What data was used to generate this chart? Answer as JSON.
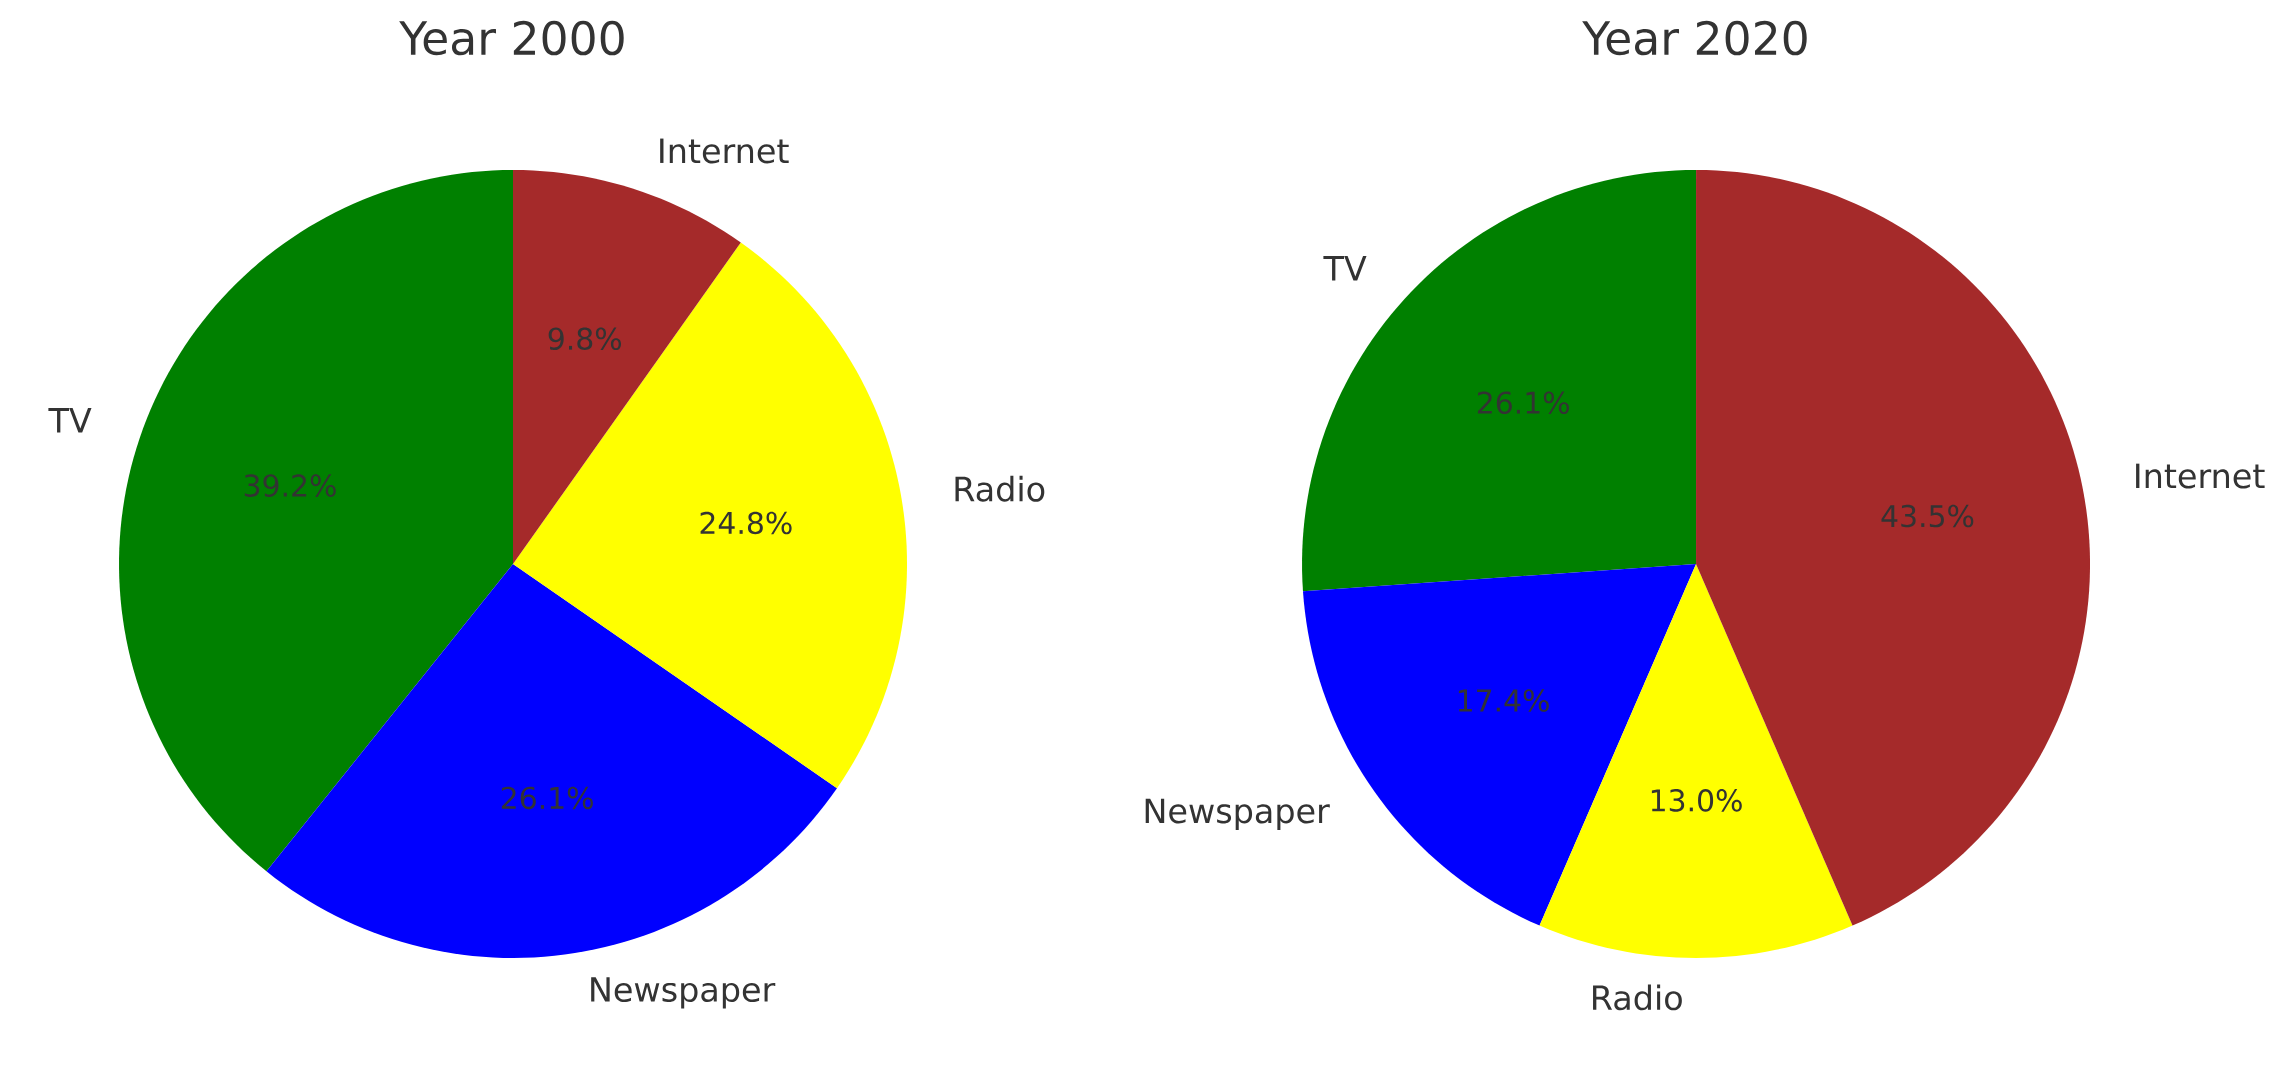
{
  "chart_data": [
    {
      "type": "pie",
      "title": "Year 2000",
      "categories": [
        "TV",
        "Newspaper",
        "Radio",
        "Internet"
      ],
      "values": [
        39.2,
        26.1,
        24.8,
        9.8
      ],
      "colors": [
        "#008000",
        "#0000ff",
        "#ffff00",
        "#a52a2a"
      ],
      "value_labels": [
        "39.2%",
        "26.1%",
        "24.8%",
        "9.8%"
      ]
    },
    {
      "type": "pie",
      "title": "Year 2020",
      "categories": [
        "TV",
        "Newspaper",
        "Radio",
        "Internet"
      ],
      "values": [
        26.1,
        17.4,
        13.0,
        43.5
      ],
      "colors": [
        "#008000",
        "#0000ff",
        "#ffff00",
        "#a52a2a"
      ],
      "value_labels": [
        "26.1%",
        "17.4%",
        "13.0%",
        "43.5%"
      ]
    }
  ]
}
